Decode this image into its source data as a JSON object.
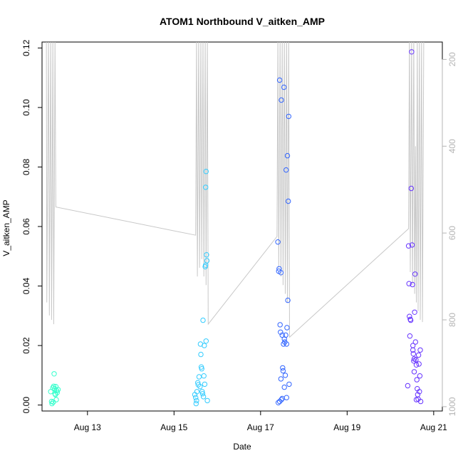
{
  "chart_data": {
    "type": "scatter",
    "title": "ATOM1 Northbound V_aitken_AMP",
    "xlabel": "Date",
    "ylabel": "V_aitken_AMP",
    "x_ticks": [
      "Aug 13",
      "Aug 15",
      "Aug 17",
      "Aug 19",
      "Aug 21"
    ],
    "x_tick_days": [
      13,
      15,
      17,
      19,
      21
    ],
    "xlim_days": [
      11.95,
      21.2
    ],
    "y_ticks": [
      "0.00",
      "0.02",
      "0.04",
      "0.06",
      "0.08",
      "0.10",
      "0.12"
    ],
    "ylim": [
      -0.002,
      0.122
    ],
    "y2_ticks": [
      "200",
      "400",
      "600",
      "800",
      "1000"
    ],
    "y2lim": [
      1010,
      160
    ],
    "y2_color": "#b4b4b4",
    "series": [
      {
        "color": "#33ffcc",
        "points": [
          [
            12.15,
            0.0045
          ],
          [
            12.17,
            0.0012
          ],
          [
            12.18,
            0.0005
          ],
          [
            12.2,
            0.0058
          ],
          [
            12.22,
            0.0063
          ],
          [
            12.23,
            0.0105
          ],
          [
            12.24,
            0.0055
          ],
          [
            12.25,
            0.0038
          ],
          [
            12.27,
            0.0062
          ],
          [
            12.28,
            0.0018
          ],
          [
            12.29,
            0.0048
          ],
          [
            12.3,
            0.0042
          ],
          [
            12.32,
            0.0052
          ],
          [
            12.21,
            0.001
          ],
          [
            12.26,
            0.0035
          ]
        ]
      },
      {
        "color": "#33ccff",
        "points": [
          [
            15.48,
            0.0035
          ],
          [
            15.5,
            0.0025
          ],
          [
            15.51,
            0.0005
          ],
          [
            15.52,
            0.0015
          ],
          [
            15.53,
            0.0045
          ],
          [
            15.55,
            0.0075
          ],
          [
            15.56,
            0.0068
          ],
          [
            15.58,
            0.0095
          ],
          [
            15.6,
            0.0062
          ],
          [
            15.61,
            0.0205
          ],
          [
            15.62,
            0.017
          ],
          [
            15.63,
            0.0128
          ],
          [
            15.64,
            0.0122
          ],
          [
            15.65,
            0.0045
          ],
          [
            15.66,
            0.0038
          ],
          [
            15.67,
            0.0285
          ],
          [
            15.68,
            0.0028
          ],
          [
            15.7,
            0.02
          ],
          [
            15.72,
            0.0465
          ],
          [
            15.73,
            0.0732
          ],
          [
            15.74,
            0.0785
          ],
          [
            15.75,
            0.0505
          ],
          [
            15.76,
            0.0485
          ],
          [
            15.74,
            0.0215
          ],
          [
            15.77,
            0.0015
          ],
          [
            15.73,
            0.047
          ],
          [
            15.69,
            0.0098
          ],
          [
            15.71,
            0.007
          ]
        ]
      },
      {
        "color": "#3366ff",
        "points": [
          [
            17.4,
            0.0548
          ],
          [
            17.42,
            0.045
          ],
          [
            17.43,
            0.0458
          ],
          [
            17.44,
            0.1092
          ],
          [
            17.45,
            0.027
          ],
          [
            17.46,
            0.0245
          ],
          [
            17.47,
            0.0445
          ],
          [
            17.48,
            0.1025
          ],
          [
            17.5,
            0.0235
          ],
          [
            17.51,
            0.0125
          ],
          [
            17.52,
            0.0115
          ],
          [
            17.53,
            0.0205
          ],
          [
            17.54,
            0.1068
          ],
          [
            17.55,
            0.0222
          ],
          [
            17.56,
            0.0212
          ],
          [
            17.57,
            0.01
          ],
          [
            17.58,
            0.0235
          ],
          [
            17.59,
            0.079
          ],
          [
            17.6,
            0.0205
          ],
          [
            17.61,
            0.026
          ],
          [
            17.62,
            0.0838
          ],
          [
            17.63,
            0.0352
          ],
          [
            17.64,
            0.0685
          ],
          [
            17.65,
            0.097
          ],
          [
            17.66,
            0.007
          ],
          [
            17.41,
            0.0008
          ],
          [
            17.44,
            0.0012
          ],
          [
            17.48,
            0.0018
          ],
          [
            17.5,
            0.0022
          ],
          [
            17.55,
            0.006
          ],
          [
            17.6,
            0.0025
          ],
          [
            17.47,
            0.0088
          ]
        ]
      },
      {
        "color": "#6633ff",
        "points": [
          [
            20.4,
            0.0065
          ],
          [
            20.42,
            0.0535
          ],
          [
            20.43,
            0.0408
          ],
          [
            20.44,
            0.0298
          ],
          [
            20.45,
            0.0232
          ],
          [
            20.46,
            0.0288
          ],
          [
            20.47,
            0.0285
          ],
          [
            20.48,
            0.0728
          ],
          [
            20.49,
            0.1187
          ],
          [
            20.5,
            0.0538
          ],
          [
            20.51,
            0.0405
          ],
          [
            20.52,
            0.0185
          ],
          [
            20.53,
            0.0172
          ],
          [
            20.54,
            0.0148
          ],
          [
            20.55,
            0.0155
          ],
          [
            20.56,
            0.0312
          ],
          [
            20.57,
            0.044
          ],
          [
            20.58,
            0.0212
          ],
          [
            20.59,
            0.0152
          ],
          [
            20.6,
            0.0135
          ],
          [
            20.61,
            0.0085
          ],
          [
            20.62,
            0.0055
          ],
          [
            20.63,
            0.0035
          ],
          [
            20.64,
            0.002
          ],
          [
            20.65,
            0.0168
          ],
          [
            20.66,
            0.0138
          ],
          [
            20.67,
            0.0045
          ],
          [
            20.68,
            0.0098
          ],
          [
            20.69,
            0.0185
          ],
          [
            20.7,
            0.0012
          ],
          [
            20.52,
            0.02
          ],
          [
            20.55,
            0.0112
          ],
          [
            20.6,
            0.0018
          ]
        ]
      }
    ],
    "secondary_line": {
      "color": "#c8c8c8",
      "axis": "right",
      "points": [
        [
          12.05,
          150
        ],
        [
          12.06,
          760
        ],
        [
          12.1,
          150
        ],
        [
          12.12,
          790
        ],
        [
          12.15,
          150
        ],
        [
          12.17,
          800
        ],
        [
          12.2,
          150
        ],
        [
          12.22,
          810
        ],
        [
          12.25,
          150
        ],
        [
          12.27,
          540
        ],
        [
          15.5,
          605
        ],
        [
          15.52,
          150
        ],
        [
          15.54,
          700
        ],
        [
          15.57,
          150
        ],
        [
          15.59,
          680
        ],
        [
          15.62,
          150
        ],
        [
          15.64,
          660
        ],
        [
          15.67,
          150
        ],
        [
          15.69,
          700
        ],
        [
          15.72,
          150
        ],
        [
          15.74,
          720
        ],
        [
          15.77,
          150
        ],
        [
          15.79,
          810
        ],
        [
          17.38,
          608
        ],
        [
          17.4,
          150
        ],
        [
          17.42,
          680
        ],
        [
          17.45,
          150
        ],
        [
          17.47,
          700
        ],
        [
          17.5,
          150
        ],
        [
          17.52,
          720
        ],
        [
          17.55,
          150
        ],
        [
          17.57,
          740
        ],
        [
          17.6,
          150
        ],
        [
          17.62,
          760
        ],
        [
          17.65,
          150
        ],
        [
          17.67,
          840
        ],
        [
          20.42,
          590
        ],
        [
          20.44,
          150
        ],
        [
          20.46,
          690
        ],
        [
          20.49,
          150
        ],
        [
          20.51,
          720
        ],
        [
          20.54,
          150
        ],
        [
          20.56,
          740
        ],
        [
          20.58,
          400
        ],
        [
          20.6,
          760
        ],
        [
          20.62,
          150
        ],
        [
          20.64,
          780
        ],
        [
          20.67,
          150
        ],
        [
          20.69,
          800
        ],
        [
          20.72,
          150
        ],
        [
          20.74,
          805
        ],
        [
          20.77,
          150
        ]
      ]
    }
  }
}
